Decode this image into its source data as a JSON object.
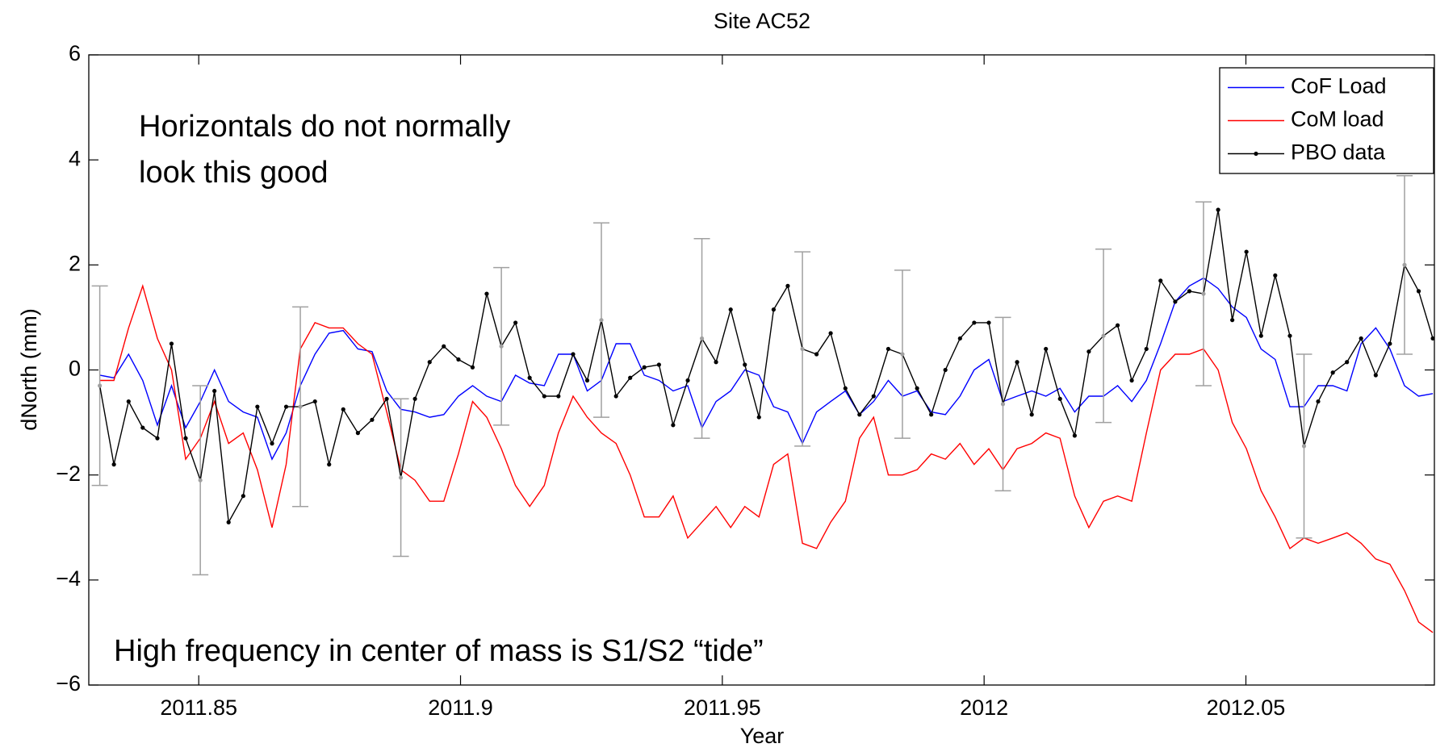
{
  "chart_data": {
    "type": "line",
    "title": "Site AC52",
    "xlabel": "Year",
    "ylabel": "dNorth (mm)",
    "annotations": [
      "Horizontals do not normally",
      "look this good",
      "High frequency in center of mass is S1/S2 “tide”"
    ],
    "xlim": [
      2011.829,
      2012.086
    ],
    "ylim": [
      -6,
      6
    ],
    "xticks": [
      2011.85,
      2011.9,
      2011.95,
      2012,
      2012.05
    ],
    "yticks": [
      {
        "value": -6,
        "label": "−6"
      },
      {
        "value": -4,
        "label": "−4"
      },
      {
        "value": -2,
        "label": "−2"
      },
      0,
      2,
      4,
      6
    ],
    "legend": "upper right",
    "x": [
      2011.8311,
      2011.8338,
      2011.8366,
      2011.8393,
      2011.8421,
      2011.8448,
      2011.8475,
      2011.8503,
      2011.853,
      2011.8557,
      2011.8585,
      2011.8612,
      2011.864,
      2011.8667,
      2011.8694,
      2011.8722,
      2011.8749,
      2011.8776,
      2011.8804,
      2011.8831,
      2011.8859,
      2011.8886,
      2011.8913,
      2011.8941,
      2011.8968,
      2011.8996,
      2011.9023,
      2011.905,
      2011.9078,
      2011.9105,
      2011.9132,
      2011.916,
      2011.9187,
      2011.9215,
      2011.9242,
      2011.9269,
      2011.9297,
      2011.9324,
      2011.9351,
      2011.9379,
      2011.9406,
      2011.9434,
      2011.9461,
      2011.9488,
      2011.9516,
      2011.9543,
      2011.957,
      2011.9598,
      2011.9625,
      2011.9653,
      2011.968,
      2011.9707,
      2011.9735,
      2011.9762,
      2011.9789,
      2011.9817,
      2011.9844,
      2011.9872,
      2011.9899,
      2011.9926,
      2011.9954,
      2011.9981,
      2012.0009,
      2012.0036,
      2012.0063,
      2012.0091,
      2012.0118,
      2012.0145,
      2012.0173,
      2012.02,
      2012.0228,
      2012.0255,
      2012.0282,
      2012.031,
      2012.0337,
      2012.0365,
      2012.0392,
      2012.0419,
      2012.0447,
      2012.0474,
      2012.0501,
      2012.0529,
      2012.0556,
      2012.0584,
      2012.0611,
      2012.0638,
      2012.0666,
      2012.0693,
      2012.072,
      2012.0748,
      2012.0775,
      2012.0803,
      2012.083,
      2012.0857
    ],
    "series": [
      {
        "name": "CoF Load",
        "color": "#0000ff",
        "values": [
          -0.1,
          -0.15,
          0.3,
          -0.2,
          -1.05,
          -0.3,
          -1.1,
          -0.6,
          0.0,
          -0.6,
          -0.8,
          -0.9,
          -1.7,
          -1.2,
          -0.3,
          0.3,
          0.7,
          0.75,
          0.4,
          0.35,
          -0.4,
          -0.75,
          -0.8,
          -0.9,
          -0.85,
          -0.5,
          -0.3,
          -0.5,
          -0.6,
          -0.1,
          -0.25,
          -0.3,
          0.3,
          0.3,
          -0.4,
          -0.2,
          0.5,
          0.5,
          -0.1,
          -0.2,
          -0.4,
          -0.3,
          -1.1,
          -0.6,
          -0.4,
          0.0,
          -0.1,
          -0.7,
          -0.8,
          -1.4,
          -0.8,
          -0.6,
          -0.4,
          -0.85,
          -0.6,
          -0.2,
          -0.5,
          -0.4,
          -0.8,
          -0.85,
          -0.5,
          0.0,
          0.2,
          -0.6,
          -0.5,
          -0.4,
          -0.5,
          -0.35,
          -0.8,
          -0.5,
          -0.5,
          -0.3,
          -0.6,
          -0.2,
          0.5,
          1.3,
          1.6,
          1.75,
          1.55,
          1.2,
          1.0,
          0.4,
          0.2,
          -0.7,
          -0.7,
          -0.3,
          -0.3,
          -0.4,
          0.5,
          0.8,
          0.4,
          -0.3,
          -0.5,
          -0.45
        ]
      },
      {
        "name": "CoM load",
        "color": "#ff0000",
        "values": [
          -0.2,
          -0.2,
          0.8,
          1.6,
          0.6,
          0.0,
          -1.7,
          -1.3,
          -0.6,
          -1.4,
          -1.2,
          -1.9,
          -3.0,
          -1.8,
          0.4,
          0.9,
          0.8,
          0.8,
          0.5,
          0.3,
          -0.8,
          -1.9,
          -2.1,
          -2.5,
          -2.5,
          -1.6,
          -0.6,
          -0.9,
          -1.5,
          -2.2,
          -2.6,
          -2.2,
          -1.2,
          -0.5,
          -0.9,
          -1.2,
          -1.4,
          -2.0,
          -2.8,
          -2.8,
          -2.4,
          -3.2,
          -2.9,
          -2.6,
          -3.0,
          -2.6,
          -2.8,
          -1.8,
          -1.6,
          -3.3,
          -3.4,
          -2.9,
          -2.5,
          -1.3,
          -0.9,
          -2.0,
          -2.0,
          -1.9,
          -1.6,
          -1.7,
          -1.4,
          -1.8,
          -1.5,
          -1.9,
          -1.5,
          -1.4,
          -1.2,
          -1.3,
          -2.4,
          -3.0,
          -2.5,
          -2.4,
          -2.5,
          -1.2,
          0.0,
          0.3,
          0.3,
          0.4,
          0.0,
          -1.0,
          -1.5,
          -2.3,
          -2.8,
          -3.4,
          -3.2,
          -3.3,
          -3.2,
          -3.1,
          -3.3,
          -3.6,
          -3.7,
          -4.2,
          -4.8,
          -5.0
        ]
      },
      {
        "name": "PBO data",
        "color": "#000000",
        "error_color": "#a0a0a0",
        "values": [
          -0.3,
          -1.8,
          -0.6,
          -1.1,
          -1.3,
          0.5,
          -1.3,
          -2.1,
          -0.4,
          -2.9,
          -2.4,
          -0.7,
          -1.4,
          -0.7,
          -0.7,
          -0.6,
          -1.8,
          -0.75,
          -1.2,
          -0.95,
          -0.55,
          -2.05,
          -0.55,
          0.15,
          0.45,
          0.2,
          0.05,
          1.45,
          0.45,
          0.9,
          -0.15,
          -0.5,
          -0.5,
          0.3,
          -0.2,
          0.95,
          -0.5,
          -0.15,
          0.05,
          0.1,
          -1.05,
          -0.2,
          0.6,
          0.15,
          1.15,
          0.1,
          -0.9,
          1.15,
          1.6,
          0.4,
          0.3,
          0.7,
          -0.35,
          -0.85,
          -0.5,
          0.4,
          0.3,
          -0.35,
          -0.85,
          0.0,
          0.6,
          0.9,
          0.9,
          -0.65,
          0.15,
          -0.85,
          0.4,
          -0.55,
          -1.25,
          0.35,
          0.65,
          0.85,
          -0.2,
          0.4,
          1.7,
          1.3,
          1.5,
          1.45,
          3.05,
          0.95,
          2.25,
          0.65,
          1.8,
          0.65,
          -1.45,
          -0.6,
          -0.05,
          0.15,
          0.6,
          -0.1,
          0.5,
          2.0,
          1.5,
          0.6
        ],
        "errors": [
          1.9,
          null,
          null,
          null,
          null,
          null,
          null,
          1.8,
          null,
          null,
          null,
          null,
          null,
          null,
          1.9,
          null,
          null,
          null,
          null,
          null,
          null,
          1.5,
          null,
          null,
          null,
          null,
          null,
          null,
          1.5,
          null,
          null,
          null,
          null,
          null,
          null,
          1.85,
          null,
          null,
          null,
          null,
          null,
          null,
          1.9,
          null,
          null,
          null,
          null,
          null,
          null,
          1.85,
          null,
          null,
          null,
          null,
          null,
          null,
          1.6,
          null,
          null,
          null,
          null,
          null,
          null,
          1.65,
          null,
          null,
          null,
          null,
          null,
          null,
          1.65,
          null,
          null,
          null,
          null,
          null,
          null,
          1.75,
          null,
          null,
          null,
          null,
          null,
          null,
          1.75,
          null,
          null,
          null,
          null,
          null,
          null,
          1.7,
          null,
          null
        ]
      }
    ]
  }
}
